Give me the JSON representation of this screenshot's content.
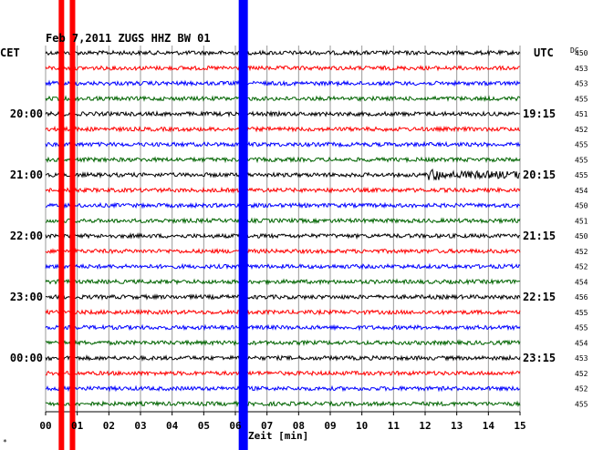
{
  "header": {
    "title": "Feb 7,2011   ZUGS HHZ BW 01",
    "left_tz": "CET",
    "right_tz": "UTC",
    "dc_label": "DC"
  },
  "chart_data": {
    "type": "seismogram",
    "xlabel": "Zeit [min]",
    "x_ticks": [
      "00",
      "01",
      "02",
      "03",
      "04",
      "05",
      "06",
      "07",
      "08",
      "09",
      "10",
      "11",
      "12",
      "13",
      "14",
      "15"
    ],
    "xlim": [
      0,
      15
    ],
    "left_hour_labels": [
      {
        "trace": 4,
        "label": "20:00"
      },
      {
        "trace": 8,
        "label": "21:00"
      },
      {
        "trace": 12,
        "label": "22:00"
      },
      {
        "trace": 16,
        "label": "23:00"
      },
      {
        "trace": 20,
        "label": "00:00"
      }
    ],
    "right_hour_labels": [
      {
        "trace": 4,
        "label": "19:15"
      },
      {
        "trace": 8,
        "label": "20:15"
      },
      {
        "trace": 12,
        "label": "21:15"
      },
      {
        "trace": 16,
        "label": "22:15"
      },
      {
        "trace": 20,
        "label": "23:15"
      }
    ],
    "trace_colors": [
      "#000000",
      "#ff0000",
      "#0000ff",
      "#006400"
    ],
    "dc_offsets": [
      "450",
      "453",
      "453",
      "455",
      "451",
      "452",
      "455",
      "455",
      "455",
      "454",
      "450",
      "451",
      "450",
      "452",
      "452",
      "454",
      "456",
      "455",
      "455",
      "454",
      "453",
      "452",
      "452",
      "455"
    ],
    "event": {
      "trace": 8,
      "start_min": 12.1,
      "end_min": 15
    },
    "red_markers_min": [
      0.5,
      0.85
    ],
    "blue_marker_min": 6.25
  },
  "footnote": "*"
}
